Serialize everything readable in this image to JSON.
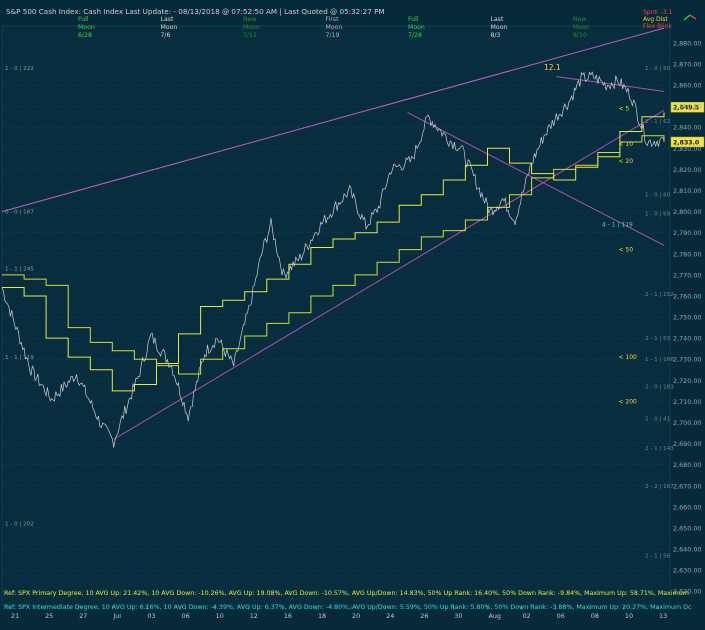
{
  "header": {
    "title": "S&P 500 Cash Index:  Cash Index   Last Update: - 08/13/2018 @ 07:52:50 AM | Last Quoted @ 05:32:27 PM",
    "moon_phases": [
      {
        "phase": "Full\nMoon",
        "date": "6/28",
        "color": "#3fd43f"
      },
      {
        "phase": "Last\nMoon",
        "date": "7/6",
        "color": "#d8d8d8"
      },
      {
        "phase": "New\nMoon",
        "date": "7/12",
        "color": "#2d8a2d"
      },
      {
        "phase": "First\nMoon",
        "date": "7/19",
        "color": "#b0b0b0"
      },
      {
        "phase": "Full\nMoon",
        "date": "7/28",
        "color": "#3fd43f"
      },
      {
        "phase": "Last\nMoon",
        "date": "8/3",
        "color": "#d8d8d8"
      },
      {
        "phase": "New\nMoon",
        "date": "8/10",
        "color": "#2d8a2d"
      }
    ],
    "legend": [
      {
        "label": "Sprd: -3.1",
        "color": "#ff4040"
      },
      {
        "label": "Avg Dist",
        "color": "#ffd23f"
      },
      {
        "label": "Flex Blink",
        "color": "#ff4040"
      }
    ]
  },
  "chart_data": {
    "type": "line",
    "title": "S&P 500 Cash Index",
    "ylim": [
      2613,
      2888
    ],
    "y_ticks": [
      "2,880.00",
      "2,870.00",
      "2,860.00",
      "2,850.00",
      "2,840.00",
      "2,830.00",
      "2,820.00",
      "2,810.00",
      "2,800.00",
      "2,790.00",
      "2,780.00",
      "2,770.00",
      "2,760.00",
      "2,750.00",
      "2,740.00",
      "2,730.00",
      "2,720.00",
      "2,710.00",
      "2,700.00",
      "2,690.00",
      "2,680.00",
      "2,670.00",
      "2,660.00",
      "2,650.00",
      "2,640.00",
      "2,630.00",
      "2,620.00"
    ],
    "x_ticks": [
      "21",
      "25",
      "27",
      "Jul",
      "03",
      "06",
      "10",
      "12",
      "16",
      "18",
      "20",
      "24",
      "26",
      "30",
      "Aug",
      "02",
      "06",
      "08",
      "10",
      "13"
    ],
    "price_series": {
      "name": "SPX",
      "color": "#cfcfcf",
      "x": [
        0,
        7,
        12,
        18,
        24,
        27,
        30,
        33,
        36,
        41,
        45,
        49,
        52,
        56,
        60,
        63,
        65,
        68,
        72,
        76,
        80,
        84,
        88,
        91,
        94,
        99,
        103,
        108,
        111,
        115,
        118,
        121,
        124,
        128,
        131,
        134,
        137,
        140,
        143,
        146,
        149,
        152,
        156,
        160
      ],
      "y": [
        2764,
        2725,
        2711,
        2723,
        2699,
        2691,
        2707,
        2722,
        2741,
        2727,
        2703,
        2733,
        2740,
        2727,
        2756,
        2782,
        2794,
        2770,
        2778,
        2791,
        2801,
        2810,
        2793,
        2802,
        2820,
        2824,
        2845,
        2834,
        2830,
        2812,
        2800,
        2806,
        2796,
        2823,
        2836,
        2845,
        2852,
        2863,
        2864,
        2860,
        2862,
        2855,
        2833,
        2834
      ]
    },
    "stepped_lines": [
      {
        "name": "< 5",
        "color": "#e8e84a",
        "y": [
          2764,
          2760,
          2740,
          2731,
          2725,
          2715,
          2718,
          2728,
          2742,
          2755,
          2758,
          2762,
          2768,
          2775,
          2783,
          2787,
          2790,
          2795,
          2803,
          2808,
          2815,
          2822,
          2830,
          2823,
          2818,
          2815,
          2821,
          2826,
          2838,
          2845,
          2847
        ]
      },
      {
        "name": "< 10",
        "color": "#d8d840",
        "y": [
          2770,
          2768,
          2765,
          2745,
          2738,
          2734,
          2730,
          2727,
          2723,
          2730,
          2735,
          2741,
          2747,
          2752,
          2760,
          2765,
          2770,
          2776,
          2782,
          2788,
          2791,
          2796,
          2802,
          2808,
          2816,
          2820,
          2822,
          2828,
          2833,
          2836,
          2833
        ]
      }
    ],
    "price_labels": [
      "2,849.5",
      "2,833.0"
    ],
    "trendlines": [
      {
        "label": "upper channel",
        "color": "#c060c0",
        "points": [
          [
            0,
            2800
          ],
          [
            160,
            2887
          ]
        ]
      },
      {
        "label": "lower support",
        "color": "#b050b0",
        "points": [
          [
            27,
            2692
          ],
          [
            160,
            2848
          ]
        ]
      },
      {
        "label": "top resistance",
        "color": "#b050b0",
        "points": [
          [
            98,
            2847
          ],
          [
            160,
            2784
          ]
        ]
      },
      {
        "label": "peak line",
        "color": "#b050b0",
        "points": [
          [
            134,
            2864
          ],
          [
            160,
            2857
          ]
        ]
      }
    ],
    "annotations": [
      {
        "text": "12.1",
        "color": "#ffd23f",
        "x": 131,
        "y": 2868
      },
      {
        "text": "< 5",
        "color": "#ffd23f",
        "x": 149,
        "y": 2849
      },
      {
        "text": "< 10",
        "color": "#ffd23f",
        "x": 149,
        "y": 2832
      },
      {
        "text": "< 20",
        "color": "#ffd23f",
        "x": 149,
        "y": 2824
      },
      {
        "text": "< 50",
        "color": "#ffd23f",
        "x": 149,
        "y": 2782
      },
      {
        "text": "< 100",
        "color": "#ffd23f",
        "x": 149,
        "y": 2731
      },
      {
        "text": "< 200",
        "color": "#ffd23f",
        "x": 149,
        "y": 2710
      },
      {
        "text": "4 - 1 | 119",
        "color": "#4fd4d4",
        "x": 145,
        "y": 2794
      }
    ],
    "left_levels": [
      {
        "text": "1 - 0 | 222",
        "y": 2868
      },
      {
        "text": "0 - 0 | 187",
        "y": 2800
      },
      {
        "text": "1 - 1 | 245",
        "y": 2773
      },
      {
        "text": "1 - 1 | 119",
        "y": 2731
      },
      {
        "text": "1 - 0 | 202",
        "y": 2652
      }
    ],
    "right_levels": [
      {
        "text": "1 - 0 | 60",
        "y": 2868
      },
      {
        "text": "2 - 1 | 62",
        "y": 2843
      },
      {
        "text": "1 - 0 | 60",
        "y": 2808
      },
      {
        "text": "1 - 0 | 69",
        "y": 2799
      },
      {
        "text": "2 - 1 | 152",
        "y": 2761
      },
      {
        "text": "2 - 1 | 53",
        "y": 2740
      },
      {
        "text": "1 - 1 | 166",
        "y": 2730
      },
      {
        "text": "2 - 0 | 183",
        "y": 2717
      },
      {
        "text": "2 - 0 | 41",
        "y": 2702
      },
      {
        "text": "2 - 1 | 143",
        "y": 2688
      },
      {
        "text": "2 - 2 | 167",
        "y": 2670
      },
      {
        "text": "2 - 1 | 56",
        "y": 2637
      }
    ]
  },
  "footer": {
    "line1": "Ref: SPX Primary Degree, 10 AVG Up: 21.42%, 10 AVG Down: -10.26%, AVG Up: 19.08%, AVG Down: -10.57%, AVG Up/Down: 14.83%, 50%  Up Rank: 16.40%, 50% Down Rank: -9.84%, Maximum Up: 58.71%, Maximum",
    "line2": "Ref: SPX Intermediate Degree, 10 AVG Up: 6.16%, 10 AVG Down: -4.39%, AVG Up: 6.37%, AVG Down: -4.80%, AVG Up/Down: 5.59%, 50%  Up Rank: 5.80%, 50% Down Rank: -3.88%, Maximum Up: 20.27%, Maximum Dc"
  }
}
